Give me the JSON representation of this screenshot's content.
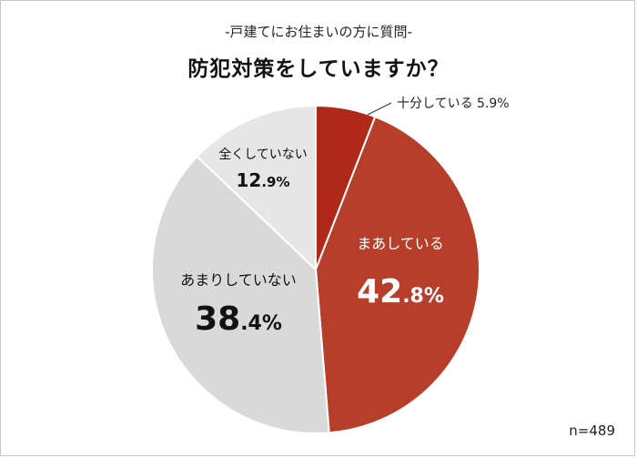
{
  "header": {
    "subtitle": "-戸建てにお住まいの方に質問-",
    "title": "防犯対策をしていますか？"
  },
  "footer": {
    "sample_size": "n=489"
  },
  "chart_data": {
    "type": "pie",
    "start_angle": "12 o'clock",
    "direction": "clockwise",
    "categories": [
      "十分している",
      "まあしている",
      "あまりしていない",
      "全くしていない"
    ],
    "values": [
      5.9,
      42.8,
      38.4,
      12.9
    ],
    "unit": "%",
    "labels": [
      {
        "name": "十分している",
        "int": "5",
        "dec": ".9%",
        "callout": true
      },
      {
        "name": "まあしている",
        "int": "42",
        "dec": ".8%",
        "callout": false
      },
      {
        "name": "あまりしていない",
        "int": "38",
        "dec": ".4%",
        "callout": false
      },
      {
        "name": "全くしていない",
        "int": "12",
        "dec": ".9%",
        "callout": false
      }
    ],
    "colors": [
      "#b0281a",
      "#b83e2c",
      "#d9d9d9",
      "#e6e6e6"
    ],
    "label_colors": [
      "#222222",
      "#ffffff",
      "#111111",
      "#111111"
    ]
  }
}
